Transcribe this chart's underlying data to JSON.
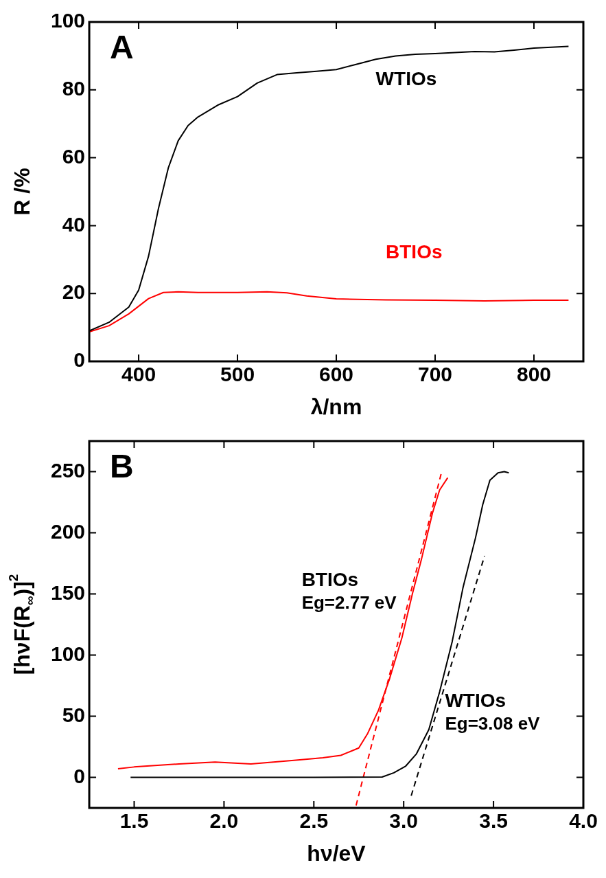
{
  "chart_data": [
    {
      "type": "line",
      "title": "A",
      "xlabel": "λ/nm",
      "ylabel": "R /%",
      "xlim": [
        350,
        850
      ],
      "xticks": [
        400,
        500,
        600,
        700,
        800
      ],
      "ylim": [
        0,
        100
      ],
      "yticks": [
        0,
        20,
        40,
        60,
        80,
        100
      ],
      "grid": false,
      "legend": false,
      "marker": "none",
      "line_style": "solid",
      "series": [
        {
          "name": "WTIOs",
          "color": "#000000",
          "x": [
            350,
            370,
            390,
            400,
            410,
            420,
            430,
            440,
            450,
            460,
            480,
            500,
            520,
            540,
            560,
            580,
            600,
            620,
            640,
            660,
            680,
            700,
            720,
            740,
            760,
            780,
            800,
            835
          ],
          "values": [
            9,
            11.5,
            16,
            21,
            31,
            45,
            57,
            65,
            69.5,
            72,
            75.5,
            78,
            82,
            84.5,
            85,
            85.5,
            86,
            87.5,
            89,
            90,
            90.5,
            90.7,
            91,
            91.3,
            91.2,
            91.7,
            92.3,
            92.8
          ]
        },
        {
          "name": "BTIOs",
          "color": "#ff0000",
          "x": [
            350,
            370,
            390,
            410,
            425,
            440,
            460,
            500,
            530,
            550,
            570,
            600,
            650,
            700,
            750,
            800,
            835
          ],
          "values": [
            8.7,
            10.5,
            14,
            18.5,
            20.3,
            20.5,
            20.3,
            20.3,
            20.5,
            20.2,
            19.3,
            18.4,
            18.1,
            18,
            17.8,
            18,
            18
          ]
        }
      ]
    },
    {
      "type": "line",
      "title": "B",
      "xlabel": "hν/eV",
      "ylabel": "[hνF(R$_{∞}$)]$^{2}$",
      "xlim": [
        1.25,
        4.0
      ],
      "xticks": [
        {
          "value": 1.5,
          "label": "1.5"
        },
        {
          "value": 2,
          "label": "2.0"
        },
        {
          "value": 2.5,
          "label": "2.5"
        },
        {
          "value": 3,
          "label": "3.0"
        },
        {
          "value": 3.5,
          "label": "3.5"
        },
        {
          "value": 4,
          "label": "4.0"
        }
      ],
      "ylim": [
        -25,
        275
      ],
      "yticks": [
        0,
        50,
        100,
        150,
        200,
        250
      ],
      "grid": false,
      "legend": false,
      "marker": "none",
      "line_style": "solid",
      "annotations": [
        "Eg=2.77 eV",
        "Eg=3.08 eV"
      ],
      "series": [
        {
          "name": "BTIOs",
          "color": "#ff0000",
          "x": [
            1.41,
            1.5,
            1.75,
            1.95,
            2.15,
            2.4,
            2.55,
            2.65,
            2.75,
            2.8,
            2.86,
            2.92,
            2.99,
            3.05,
            3.1,
            3.16,
            3.2,
            3.245
          ],
          "values": [
            7,
            8.5,
            11,
            12.5,
            11,
            14,
            16,
            18,
            24,
            36,
            55,
            80,
            114,
            151,
            179,
            216,
            235,
            245
          ]
        },
        {
          "name": "WTIOs",
          "color": "#000000",
          "x": [
            1.48,
            2.0,
            2.5,
            2.88,
            2.945,
            3.01,
            3.07,
            3.14,
            3.2,
            3.27,
            3.33,
            3.4,
            3.44,
            3.48,
            3.525,
            3.56,
            3.585
          ],
          "values": [
            0,
            0,
            0,
            0.3,
            3.7,
            9,
            19,
            39,
            70,
            111,
            155,
            196,
            223,
            243,
            249,
            250,
            249
          ]
        },
        {
          "type": "line",
          "color": "#ff0000",
          "line_style": "dashed",
          "x": [
            2.735,
            3.21
          ],
          "values": [
            -23,
            249
          ]
        },
        {
          "type": "line",
          "color": "#000000",
          "line_style": "dashed",
          "x": [
            3.042,
            3.45
          ],
          "values": [
            -15,
            181
          ]
        }
      ]
    }
  ]
}
